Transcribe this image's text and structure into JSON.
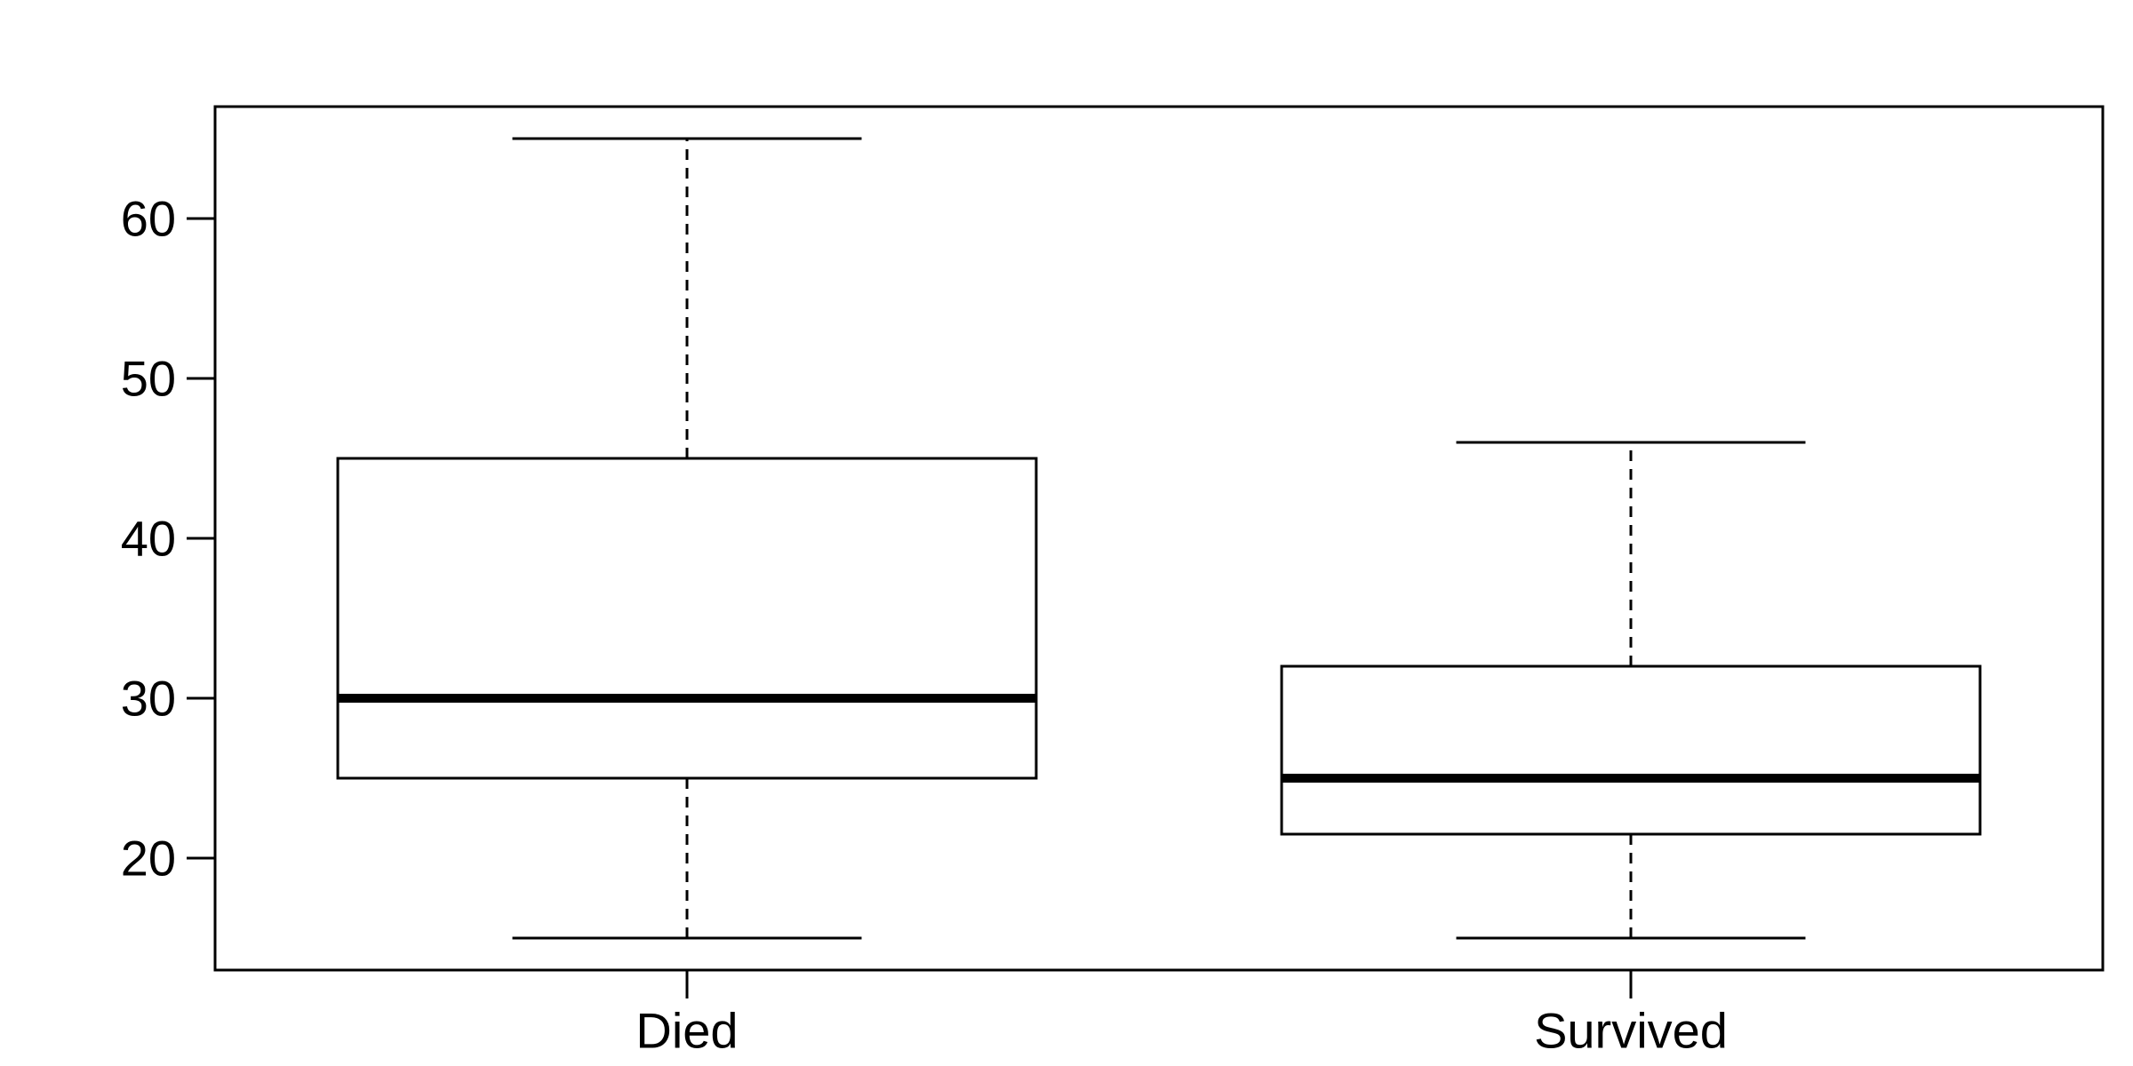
{
  "chart_data": {
    "type": "boxplot",
    "title": "",
    "xlabel": "",
    "ylabel": "",
    "categories": [
      "Died",
      "Survived"
    ],
    "boxes": [
      {
        "category": "Died",
        "whisker_low": 15,
        "q1": 25,
        "median": 30,
        "q3": 45,
        "whisker_high": 65
      },
      {
        "category": "Survived",
        "whisker_low": 15,
        "q1": 21.5,
        "median": 25,
        "q3": 32,
        "whisker_high": 46
      }
    ],
    "ylim": [
      13,
      67
    ],
    "yticks": [
      20,
      30,
      40,
      50,
      60
    ],
    "grid": false,
    "legend": "none",
    "colors": {
      "stroke": "#000000",
      "fill": "#ffffff"
    }
  }
}
